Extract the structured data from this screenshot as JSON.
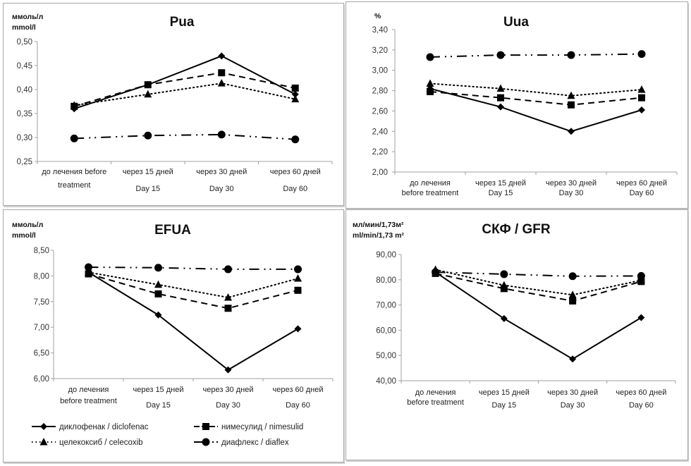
{
  "chart_data": [
    {
      "id": "pua",
      "type": "line",
      "title": "Pua",
      "ylabel": [
        "ммоль/л",
        "mmol/l"
      ],
      "xlabel": "",
      "ylim": [
        0.25,
        0.5
      ],
      "yticks": [
        "0,25",
        "0,30",
        "0,35",
        "0,40",
        "0,45",
        "0,50"
      ],
      "ytick_values": [
        0.25,
        0.3,
        0.35,
        0.4,
        0.45,
        0.5
      ],
      "categories": [
        [
          "до лечения before",
          "treatment"
        ],
        [
          "через 15 дней",
          "Day 15"
        ],
        [
          "через 30 дней",
          "Day 30"
        ],
        [
          "через 60 дней",
          "Day 60"
        ]
      ],
      "grid": false,
      "series": [
        {
          "name": "диклофенак / diclofenac",
          "values": [
            0.36,
            0.41,
            0.47,
            0.39
          ]
        },
        {
          "name": "нимесулид / nimesulid",
          "values": [
            0.365,
            0.41,
            0.435,
            0.403
          ]
        },
        {
          "name": "целекоксиб / celecoxib",
          "values": [
            0.367,
            0.39,
            0.413,
            0.38
          ]
        },
        {
          "name": "диафлекс / diaflex",
          "values": [
            0.298,
            0.304,
            0.306,
            0.296
          ]
        }
      ]
    },
    {
      "id": "uua",
      "type": "line",
      "title": "Uua",
      "ylabel": [
        "%"
      ],
      "xlabel": "",
      "ylim": [
        2.0,
        3.4
      ],
      "yticks": [
        "2,00",
        "2,20",
        "2,40",
        "2,60",
        "2,80",
        "3,00",
        "3,20",
        "3,40"
      ],
      "ytick_values": [
        2.0,
        2.2,
        2.4,
        2.6,
        2.8,
        3.0,
        3.2,
        3.4
      ],
      "categories": [
        [
          "до лечения",
          "before treatment"
        ],
        [
          "через 15 дней",
          "Day 15"
        ],
        [
          "через 30 дней",
          "Day 30"
        ],
        [
          "через 60 дней",
          "Day 60"
        ]
      ],
      "grid": false,
      "series": [
        {
          "name": "диклофенак / diclofenac",
          "values": [
            2.82,
            2.64,
            2.4,
            2.61
          ]
        },
        {
          "name": "нимесулид / nimesulid",
          "values": [
            2.79,
            2.73,
            2.66,
            2.73
          ]
        },
        {
          "name": "целекоксиб / celecoxib",
          "values": [
            2.87,
            2.82,
            2.75,
            2.81
          ]
        },
        {
          "name": "диафлекс / diaflex",
          "values": [
            3.13,
            3.15,
            3.15,
            3.16
          ]
        }
      ]
    },
    {
      "id": "efua",
      "type": "line",
      "title": "EFUA",
      "ylabel": [
        "ммоль/л",
        "mmol/l"
      ],
      "xlabel": "",
      "ylim": [
        6.0,
        8.5
      ],
      "yticks": [
        "6,00",
        "6,50",
        "7,00",
        "7,50",
        "8,00",
        "8,50"
      ],
      "ytick_values": [
        6.0,
        6.5,
        7.0,
        7.5,
        8.0,
        8.5
      ],
      "categories": [
        [
          "до лечения",
          "before treatment"
        ],
        [
          "через 15 дней",
          "Day 15"
        ],
        [
          "через 30 дней",
          "Day 30"
        ],
        [
          "через 60 дней",
          "Day 60"
        ]
      ],
      "grid": false,
      "series": [
        {
          "name": "диклофенак / diclofenac",
          "values": [
            8.07,
            7.24,
            6.17,
            6.97
          ]
        },
        {
          "name": "нимесулид / nimesulid",
          "values": [
            8.04,
            7.65,
            7.37,
            7.72
          ]
        },
        {
          "name": "целекоксиб / celecoxib",
          "values": [
            8.07,
            7.83,
            7.58,
            7.95
          ]
        },
        {
          "name": "диафлекс / diaflex",
          "values": [
            8.17,
            8.16,
            8.13,
            8.13
          ]
        }
      ]
    },
    {
      "id": "gfr",
      "type": "line",
      "title": "СКФ / GFR",
      "ylabel": [
        "мл/мин/1,73м²",
        "ml/min/1,73 m²"
      ],
      "xlabel": "",
      "ylim": [
        40.0,
        90.0
      ],
      "yticks": [
        "40,00",
        "50,00",
        "60,00",
        "70,00",
        "80,00",
        "90,00"
      ],
      "ytick_values": [
        40,
        50,
        60,
        70,
        80,
        90
      ],
      "categories": [
        [
          "до лечения",
          "before treatment"
        ],
        [
          "через 15 дней",
          "Day 15"
        ],
        [
          "через 30 дней",
          "Day 30"
        ],
        [
          "через 60 дней",
          "Day 60"
        ]
      ],
      "grid": false,
      "series": [
        {
          "name": "диклофенак / diclofenac",
          "values": [
            83.0,
            64.6,
            48.6,
            65.0
          ]
        },
        {
          "name": "нимесулид / nimesulid",
          "values": [
            82.5,
            76.5,
            71.6,
            79.3
          ]
        },
        {
          "name": "целекоксиб / celecoxib",
          "values": [
            84.0,
            77.8,
            74.0,
            79.8
          ]
        },
        {
          "name": "диафлекс / diaflex",
          "values": [
            83.0,
            82.2,
            81.4,
            81.5
          ]
        }
      ]
    }
  ],
  "legend": {
    "placement": "bottom-left",
    "items": [
      {
        "label": "диклофенак / diclofenac",
        "marker": "diamond",
        "line": "solid"
      },
      {
        "label": "нимесулид / nimesulid",
        "marker": "square",
        "line": "dashed"
      },
      {
        "label": "целекоксиб / celecoxib",
        "marker": "triangle",
        "line": "dotted"
      },
      {
        "label": "диафлекс / diaflex",
        "marker": "circle",
        "line": "dash-dot-dot"
      }
    ]
  }
}
